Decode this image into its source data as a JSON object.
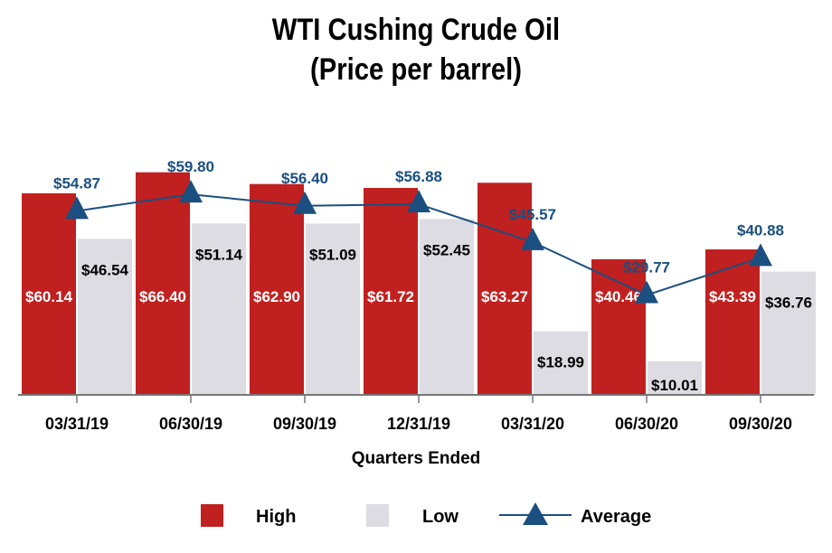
{
  "chart_data": {
    "type": "bar",
    "title": "WTI Cushing Crude Oil",
    "subtitle": "(Price per barrel)",
    "xlabel": "Quarters Ended",
    "ylabel": "",
    "ylim": [
      0,
      70
    ],
    "categories": [
      "03/31/19",
      "06/30/19",
      "09/30/19",
      "12/31/19",
      "03/31/20",
      "06/30/20",
      "09/30/20"
    ],
    "series": [
      {
        "name": "High",
        "type": "bar",
        "color": "#c0201f",
        "values": [
          60.14,
          66.4,
          62.9,
          61.72,
          63.27,
          40.46,
          43.39
        ],
        "labels": [
          "$60.14",
          "$66.40",
          "$62.90",
          "$61.72",
          "$63.27",
          "$40.46",
          "$43.39"
        ]
      },
      {
        "name": "Low",
        "type": "bar",
        "color": "#dcdce2",
        "values": [
          46.54,
          51.14,
          51.09,
          52.45,
          18.99,
          10.01,
          36.76
        ],
        "labels": [
          "$46.54",
          "$51.14",
          "$51.09",
          "$52.45",
          "$18.99",
          "$10.01",
          "$36.76"
        ]
      },
      {
        "name": "Average",
        "type": "line",
        "color": "#1a4f7f",
        "marker": "triangle",
        "values": [
          54.87,
          59.8,
          56.4,
          56.88,
          45.57,
          29.77,
          40.88
        ],
        "labels": [
          "$54.87",
          "$59.80",
          "$56.40",
          "$56.88",
          "$45.57",
          "$29.77",
          "$40.88"
        ]
      }
    ],
    "legend": {
      "placement": "bottom",
      "entries": [
        "High",
        "Low",
        "Average"
      ]
    },
    "grid": false
  }
}
